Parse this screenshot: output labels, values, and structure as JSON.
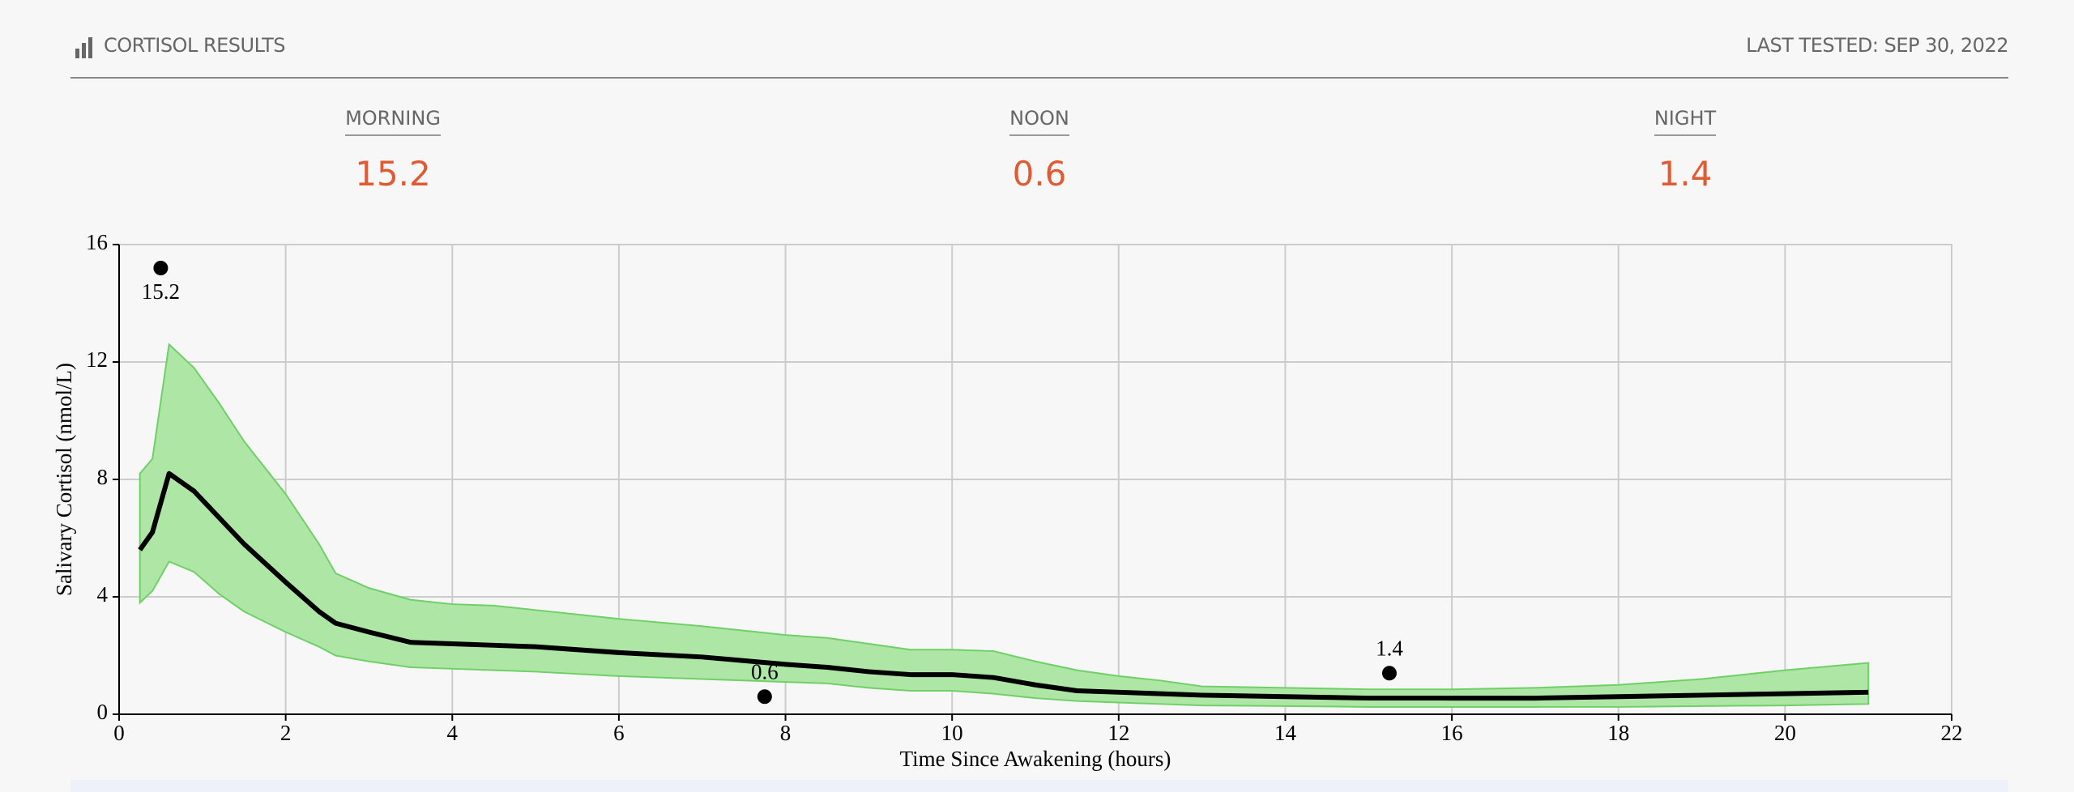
{
  "header": {
    "title": "CORTISOL RESULTS",
    "last_tested": "LAST TESTED: SEP 30, 2022"
  },
  "summary": [
    {
      "label": "MORNING",
      "value": 15.2
    },
    {
      "label": "NOON",
      "value": 0.6
    },
    {
      "label": "NIGHT",
      "value": 1.4
    }
  ],
  "chart_data": {
    "type": "line",
    "x_label": "Time Since Awakening (hours)",
    "y_label": "Salivary Cortisol (nmol/L)",
    "xlim": [
      0,
      22
    ],
    "xticks": [
      0,
      2,
      4,
      6,
      8,
      10,
      12,
      14,
      16,
      18,
      20,
      22
    ],
    "ylim": [
      0,
      16
    ],
    "yticks": [
      0,
      4,
      8,
      12,
      16
    ],
    "grid": true,
    "x": [
      0.25,
      0.4,
      0.6,
      0.9,
      1.2,
      1.5,
      2,
      2.4,
      2.6,
      3,
      3.5,
      4,
      4.5,
      5,
      6,
      7,
      8,
      8.5,
      9,
      9.5,
      10,
      10.5,
      11,
      11.5,
      12,
      12.5,
      13,
      14,
      15,
      16,
      17,
      18,
      19,
      20,
      21
    ],
    "line": {
      "color": "#000000",
      "values": [
        5.6,
        6.2,
        8.2,
        7.6,
        6.7,
        5.8,
        4.5,
        3.5,
        3.1,
        2.8,
        2.45,
        2.4,
        2.35,
        2.3,
        2.1,
        1.95,
        1.7,
        1.6,
        1.45,
        1.35,
        1.35,
        1.25,
        1.0,
        0.8,
        0.75,
        0.7,
        0.65,
        0.6,
        0.55,
        0.55,
        0.55,
        0.6,
        0.65,
        0.7,
        0.75
      ]
    },
    "band": {
      "color": "#aee6a6",
      "upper": [
        8.2,
        8.7,
        12.6,
        11.8,
        10.6,
        9.3,
        7.5,
        5.8,
        4.8,
        4.3,
        3.9,
        3.75,
        3.7,
        3.55,
        3.25,
        3.0,
        2.7,
        2.6,
        2.4,
        2.2,
        2.2,
        2.15,
        1.8,
        1.5,
        1.3,
        1.15,
        0.95,
        0.9,
        0.85,
        0.85,
        0.9,
        1.0,
        1.2,
        1.5,
        1.75
      ],
      "lower": [
        3.8,
        4.2,
        5.2,
        4.85,
        4.1,
        3.5,
        2.8,
        2.3,
        2.0,
        1.8,
        1.6,
        1.55,
        1.5,
        1.45,
        1.3,
        1.2,
        1.1,
        1.05,
        0.9,
        0.8,
        0.8,
        0.7,
        0.55,
        0.45,
        0.4,
        0.35,
        0.3,
        0.28,
        0.25,
        0.25,
        0.25,
        0.25,
        0.28,
        0.3,
        0.35
      ]
    },
    "points": {
      "color": "#000000",
      "x": [
        0.5,
        7.75,
        15.25
      ],
      "values": [
        15.2,
        0.6,
        1.4
      ]
    }
  }
}
